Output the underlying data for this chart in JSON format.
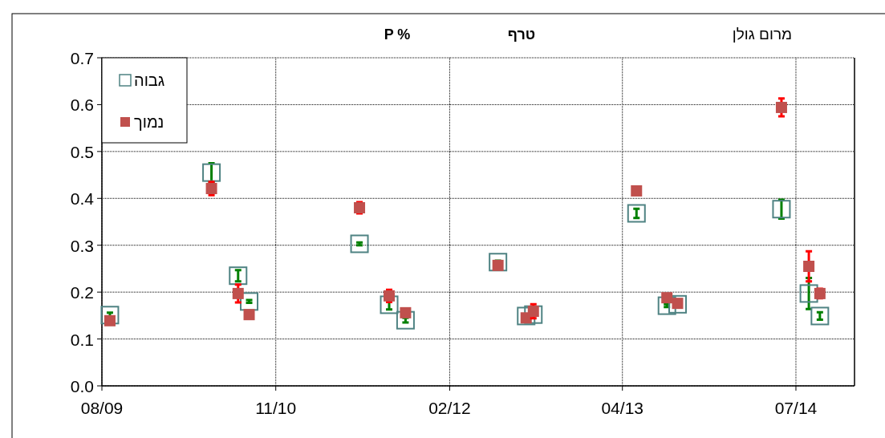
{
  "chart_data": {
    "type": "scatter",
    "title": "P %",
    "subtitle": "טרף",
    "annotations": [
      "מרום גולן"
    ],
    "x": [
      "2009-08-22",
      "2010-05-16",
      "2010-07-25",
      "2010-08-23",
      "2011-06-09",
      "2011-08-26",
      "2011-10-08",
      "2012-06-07",
      "2012-08-20",
      "2012-09-08",
      "2013-06-06",
      "2013-08-25",
      "2013-09-22",
      "2014-06-22",
      "2014-09-02",
      "2014-10-01"
    ],
    "series": [
      {
        "name": "גבוה",
        "color": "#4f8383",
        "values": [
          0.151,
          0.455,
          0.235,
          0.18,
          0.303,
          0.173,
          0.14,
          0.264,
          0.149,
          0.152,
          0.368,
          0.171,
          0.174,
          0.377,
          0.197,
          0.149
        ],
        "errors": [
          0.005,
          0.02,
          0.012,
          0.003,
          0.003,
          0.01,
          0.005,
          0.003,
          null,
          null,
          0.01,
          0.003,
          null,
          0.02,
          0.033,
          0.008
        ]
      },
      {
        "name": "נמוך",
        "color": "#c0504d",
        "values": [
          0.139,
          0.421,
          0.197,
          0.152,
          0.38,
          0.192,
          0.156,
          0.257,
          0.145,
          0.159,
          0.416,
          0.188,
          0.176,
          0.594,
          0.255,
          0.197
        ],
        "errors": [
          null,
          0.014,
          0.019,
          null,
          0.012,
          0.013,
          null,
          null,
          null,
          0.015,
          null,
          null,
          null,
          0.019,
          0.032,
          0.01
        ]
      }
    ],
    "xlim": [
      "2009-08-01",
      "2014-12-31"
    ],
    "xticks": [
      {
        "value": "2009-08-01",
        "label": "08/09"
      },
      {
        "value": "2010-11-01",
        "label": "11/10"
      },
      {
        "value": "2012-02-01",
        "label": "02/12"
      },
      {
        "value": "2013-04-30",
        "label": "04/13"
      },
      {
        "value": "2014-07-30",
        "label": "07/14"
      }
    ],
    "ylim": [
      0,
      0.7
    ],
    "yticks": [
      {
        "value": 0,
        "label": "0.0"
      },
      0.1,
      0.2,
      0.3,
      0.4,
      0.5,
      0.6,
      0.7
    ],
    "grid": true,
    "legend": "top left",
    "marker": "square"
  }
}
